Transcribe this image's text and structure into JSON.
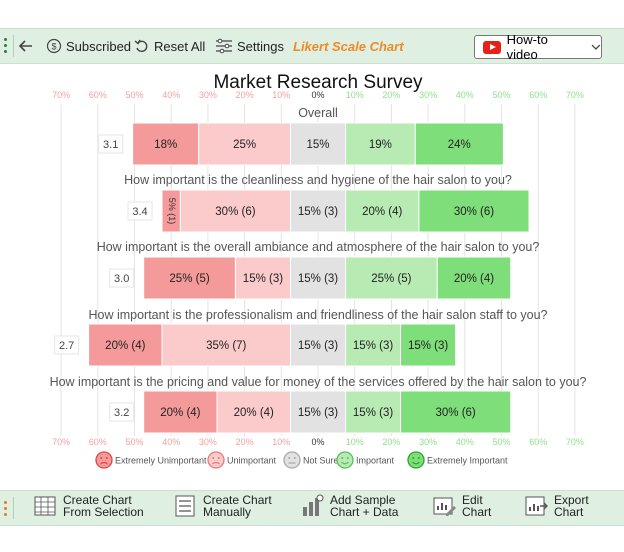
{
  "toolbar": {
    "subscribed": "Subscribed",
    "reset_all": "Reset All",
    "settings": "Settings",
    "app_title": "Likert Scale Chart",
    "howto": "How-to video"
  },
  "bottombar": {
    "create_selection": [
      "Create Chart",
      "From Selection"
    ],
    "create_manual": [
      "Create Chart",
      "Manually"
    ],
    "add_sample": [
      "Add Sample",
      "Chart + Data"
    ],
    "edit_chart": [
      "Edit",
      "Chart"
    ],
    "export_chart": [
      "Export",
      "Chart"
    ]
  },
  "colors": {
    "extremely_unimportant": "#f49a9a",
    "unimportant": "#fbcbcb",
    "not_sure": "#e2e2e2",
    "important": "#b8ebb3",
    "extremely_important": "#7ede7a",
    "neg_tick": "#f4a0a0",
    "pos_tick": "#8fe08a"
  },
  "chart_data": {
    "type": "bar",
    "title": "Market Research Survey",
    "tick_labels": [
      "70%",
      "60%",
      "50%",
      "40%",
      "30%",
      "20%",
      "10%",
      "0%",
      "10%",
      "20%",
      "30%",
      "40%",
      "50%",
      "60%",
      "70%"
    ],
    "xlim": [
      -70,
      70
    ],
    "legend": [
      "Extremely Unimportant",
      "Unimportant",
      "Not Sure",
      "Important",
      "Extremely Important"
    ],
    "legend_position": "bottom",
    "rows": [
      {
        "question": "Overall",
        "score": "3.1",
        "values": [
          18,
          25,
          15,
          19,
          24
        ],
        "labels": [
          "18%",
          "25%",
          "15%",
          "19%",
          "24%"
        ]
      },
      {
        "question": "How important is the cleanliness and hygiene of the hair salon to you?",
        "score": "3.4",
        "values": [
          5,
          30,
          15,
          20,
          30
        ],
        "labels": [
          "5% (1)",
          "30% (6)",
          "15% (3)",
          "20% (4)",
          "30% (6)"
        ]
      },
      {
        "question": "How important is the overall ambiance and atmosphere of the hair salon to you?",
        "score": "3.0",
        "values": [
          25,
          15,
          15,
          25,
          20
        ],
        "labels": [
          "25% (5)",
          "15% (3)",
          "15% (3)",
          "25% (5)",
          "20% (4)"
        ]
      },
      {
        "question": "How important is the professionalism and friendliness of the hair salon staff to you?",
        "score": "2.7",
        "values": [
          20,
          35,
          15,
          15,
          15
        ],
        "labels": [
          "20% (4)",
          "35% (7)",
          "15% (3)",
          "15% (3)",
          "15% (3)"
        ]
      },
      {
        "question": "How important is the pricing and value for money of the services offered by the hair salon to you?",
        "score": "3.2",
        "values": [
          20,
          20,
          15,
          15,
          30
        ],
        "labels": [
          "20% (4)",
          "20% (4)",
          "15% (3)",
          "15% (3)",
          "30% (6)"
        ]
      }
    ]
  }
}
